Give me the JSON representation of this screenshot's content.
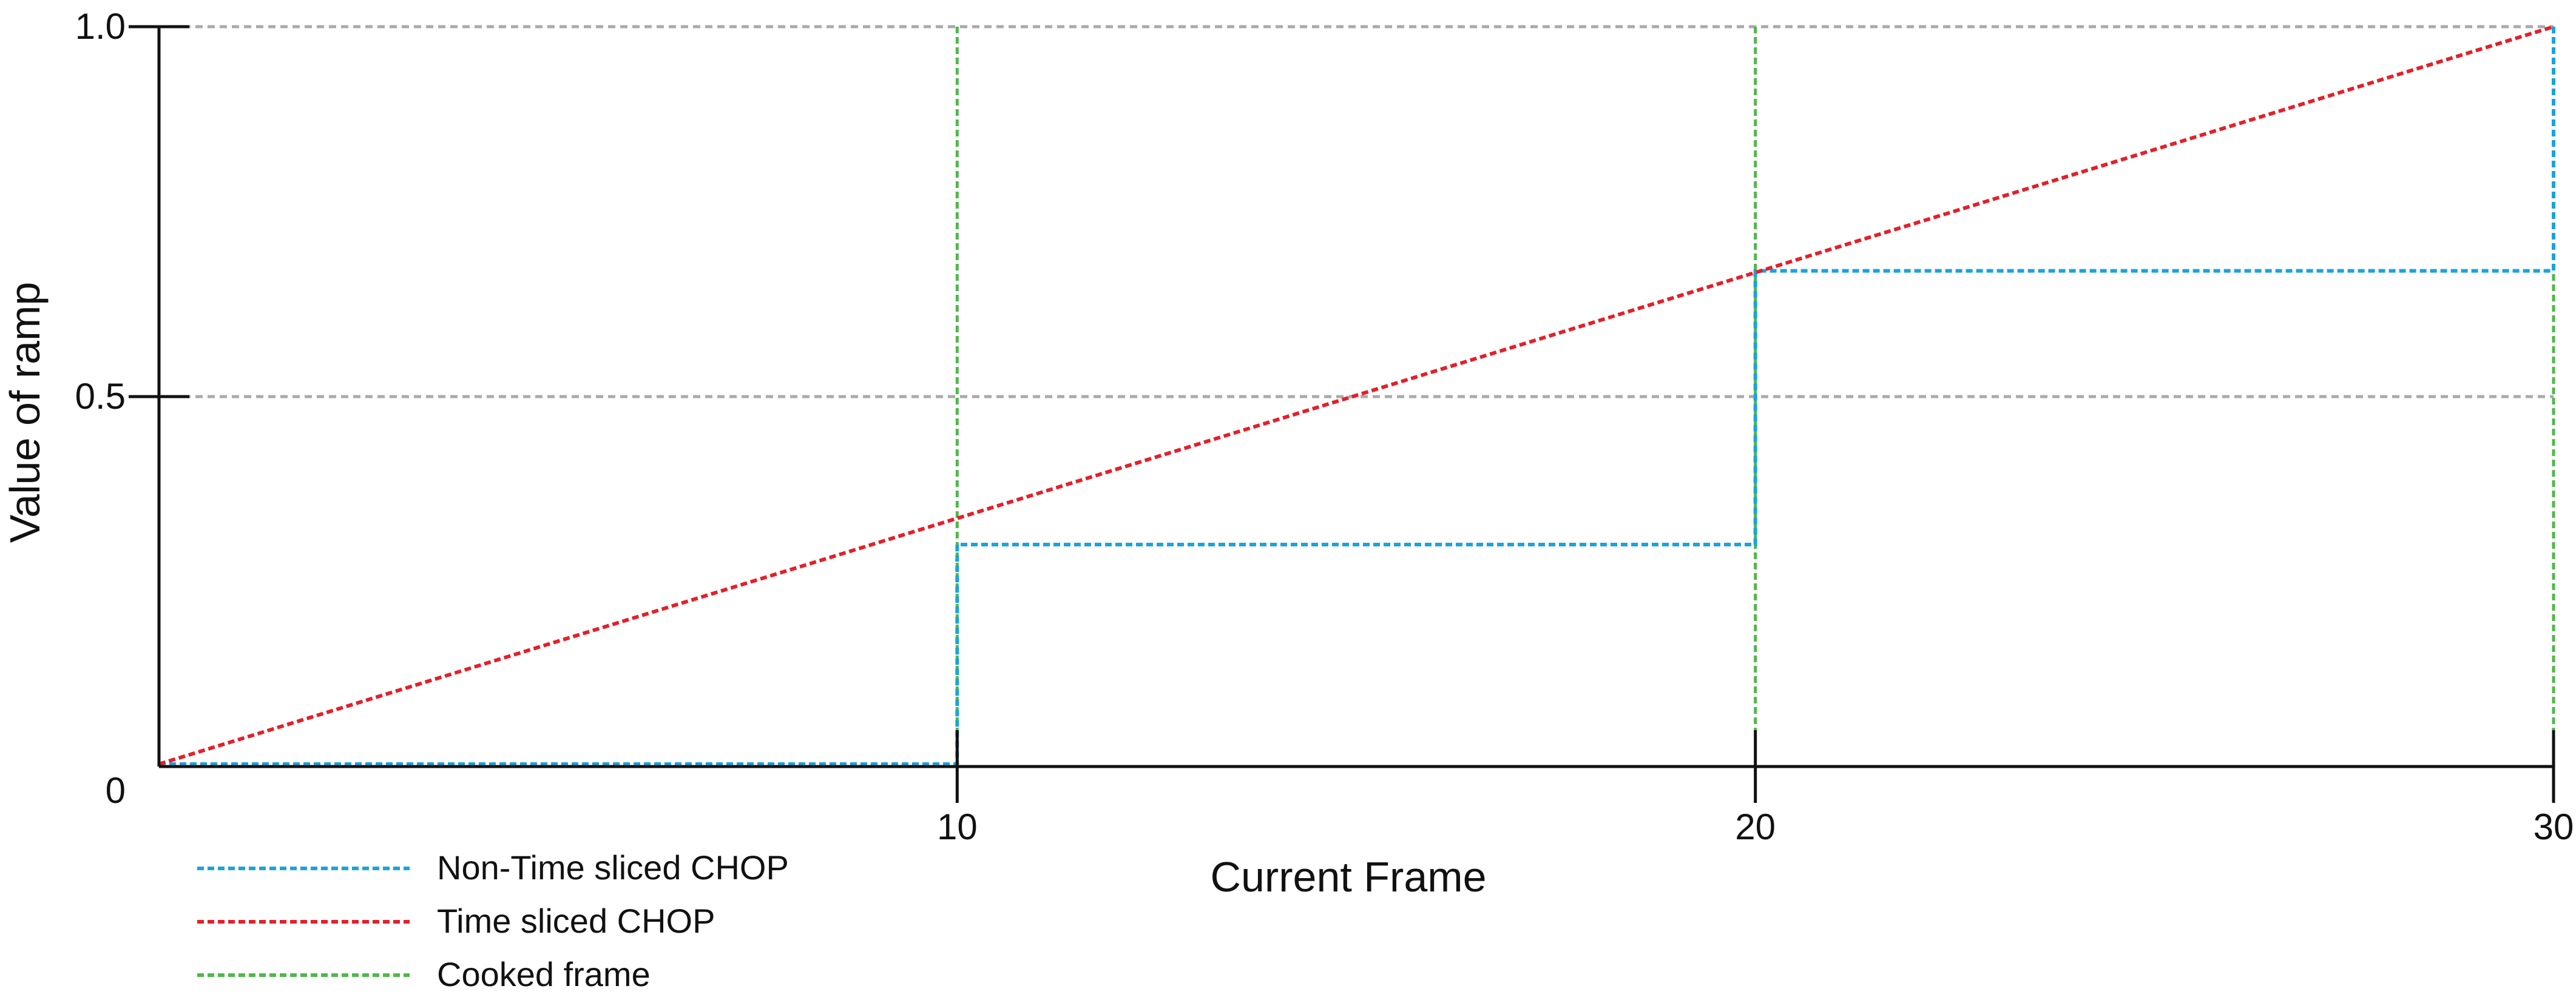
{
  "chart_data": {
    "type": "line",
    "title": "",
    "xlabel": "Current Frame",
    "ylabel": "Value of ramp",
    "xlim": [
      0,
      30
    ],
    "ylim": [
      0,
      1.0
    ],
    "x_ticks": [
      {
        "value": 10,
        "label": "10"
      },
      {
        "value": 20,
        "label": "20"
      },
      {
        "value": 30,
        "label": "30"
      }
    ],
    "y_ticks": [
      {
        "value": 0,
        "label": "0"
      },
      {
        "value": 0.5,
        "label": "0.5"
      },
      {
        "value": 1.0,
        "label": "1.0"
      }
    ],
    "grid": {
      "horizontal": true,
      "vertical": false,
      "style": "dashed",
      "color": "#aaaaaa"
    },
    "legend_position": "bottom-left",
    "series": [
      {
        "name": "Non-Time sliced CHOP",
        "color": "#1ba3dc",
        "style": "dashed",
        "x": [
          0,
          10,
          10,
          20,
          20,
          30,
          30
        ],
        "y": [
          0,
          0,
          0.3,
          0.3,
          0.67,
          0.67,
          1.0
        ]
      },
      {
        "name": "Time sliced CHOP",
        "color": "#e3202a",
        "style": "dashed",
        "x": [
          0,
          30
        ],
        "y": [
          0,
          1.0
        ]
      },
      {
        "name": "Cooked frame",
        "color": "#4fb84a",
        "style": "dashed",
        "vlines": [
          10,
          20,
          30
        ]
      }
    ]
  }
}
